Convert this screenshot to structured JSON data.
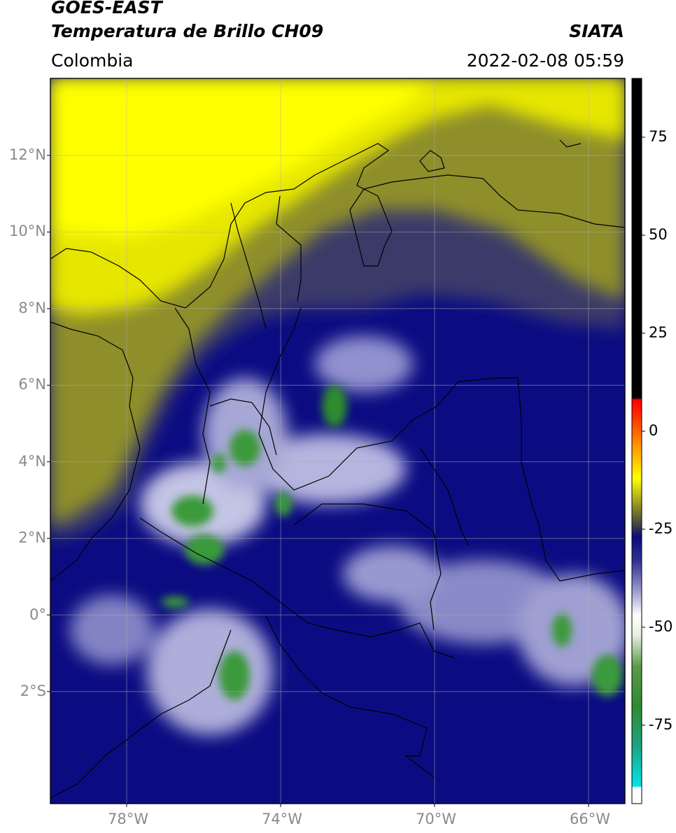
{
  "header": {
    "satellite": "GOES-EAST",
    "product": "Temperatura de Brillo CH09",
    "region": "Colombia",
    "agency": "SIATA",
    "datetime": "2022-02-08 05:59"
  },
  "map": {
    "lon_range": [
      -80,
      -65
    ],
    "lat_range": [
      -5,
      14
    ],
    "lat_ticks": [
      {
        "value": 12,
        "label": "12°N"
      },
      {
        "value": 10,
        "label": "10°N"
      },
      {
        "value": 8,
        "label": "8°N"
      },
      {
        "value": 6,
        "label": "6°N"
      },
      {
        "value": 4,
        "label": "4°N"
      },
      {
        "value": 2,
        "label": "2°N"
      },
      {
        "value": 0,
        "label": "0°"
      },
      {
        "value": -2,
        "label": "2°S"
      }
    ],
    "lon_ticks": [
      {
        "value": -78,
        "label": "78°W"
      },
      {
        "value": -74,
        "label": "74°W"
      },
      {
        "value": -70,
        "label": "70°W"
      },
      {
        "value": -66,
        "label": "66°W"
      }
    ],
    "grid": true
  },
  "colorbar": {
    "range": [
      -95,
      90
    ],
    "ticks": [
      {
        "value": 75,
        "label": "75"
      },
      {
        "value": 50,
        "label": "50"
      },
      {
        "value": 25,
        "label": "25"
      },
      {
        "value": 0,
        "label": "0"
      },
      {
        "value": -25,
        "label": "-25"
      },
      {
        "value": -50,
        "label": "-50"
      },
      {
        "value": -75,
        "label": "-75"
      }
    ],
    "stops": [
      {
        "value": -95,
        "color": "#ffffff"
      },
      {
        "value": -91,
        "color": "#ffffff"
      },
      {
        "value": -90.5,
        "color": "#00e5e5"
      },
      {
        "value": -80,
        "color": "#20a080"
      },
      {
        "value": -70,
        "color": "#2e8b2e"
      },
      {
        "value": -60,
        "color": "#5a9a4a"
      },
      {
        "value": -52,
        "color": "#e8f0e0"
      },
      {
        "value": -47,
        "color": "#ffffff"
      },
      {
        "value": -40,
        "color": "#9090c8"
      },
      {
        "value": -33,
        "color": "#303090"
      },
      {
        "value": -27,
        "color": "#0a0a80"
      },
      {
        "value": -24,
        "color": "#404040"
      },
      {
        "value": -18,
        "color": "#a0a020"
      },
      {
        "value": -12,
        "color": "#ffff00"
      },
      {
        "value": -4,
        "color": "#ff9900"
      },
      {
        "value": 5,
        "color": "#ff2000"
      },
      {
        "value": 8,
        "color": "#ff0000"
      },
      {
        "value": 8.5,
        "color": "#000000"
      },
      {
        "value": 90,
        "color": "#000000"
      }
    ]
  }
}
